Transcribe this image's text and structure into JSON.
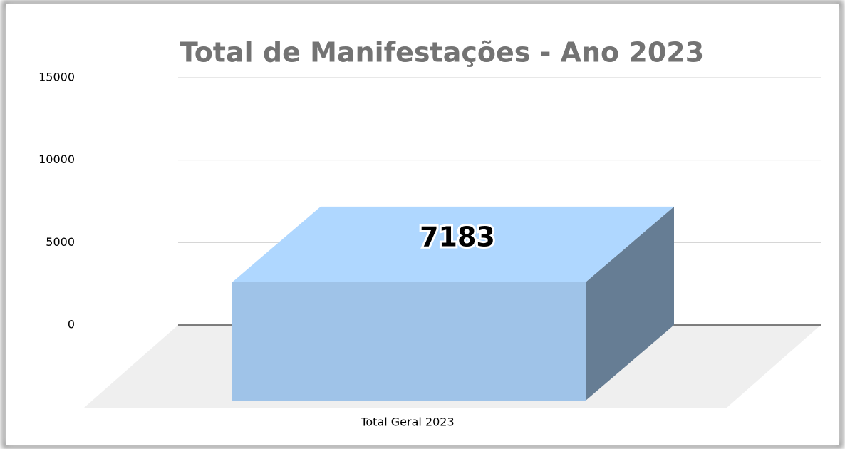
{
  "chart_data": {
    "type": "bar",
    "title": "Total de Manifestações  - Ano 2023",
    "categories": [
      "Total Geral 2023"
    ],
    "values": [
      7183
    ],
    "color": "#9fc3e8",
    "ylim": [
      0,
      15000
    ],
    "yticks": [
      0,
      5000,
      10000,
      15000
    ],
    "grid": true
  }
}
